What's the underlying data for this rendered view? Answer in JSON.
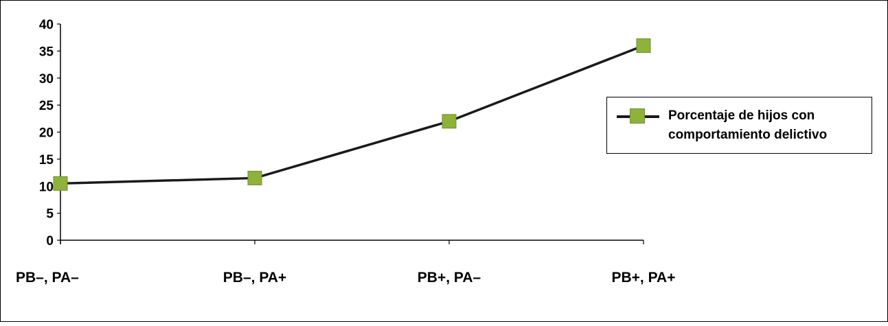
{
  "chart_data": {
    "type": "line",
    "title": "",
    "xlabel": "",
    "ylabel": "",
    "categories": [
      "PB–, PA–",
      "PB–, PA+",
      "PB+, PA–",
      "PB+, PA+"
    ],
    "series": [
      {
        "name": "Porcentaje de hijos con comportamiento delictivo",
        "values": [
          10.5,
          11.5,
          22,
          36
        ],
        "color": "#8db33a",
        "line_color": "#1a1a1a",
        "marker": "square"
      }
    ],
    "ylim": [
      0,
      40
    ],
    "yticks": [
      0,
      5,
      10,
      15,
      20,
      25,
      30,
      35,
      40
    ],
    "grid": false,
    "legend": "right"
  },
  "legend": {
    "label": "Porcentaje de hijos con comportamiento delictivo"
  }
}
